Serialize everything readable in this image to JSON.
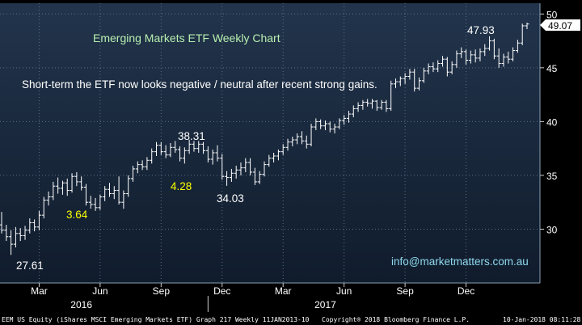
{
  "chart_data": {
    "type": "bar",
    "subtype": "ohlc",
    "title": "Emerging Markets ETF Weekly Chart",
    "subtitle": "Short-term the ETF now looks negative / neutral after recent strong gains.",
    "contact": "info@marketmatters.com.au",
    "last_price_label": "49.07",
    "ylim": [
      25,
      51
    ],
    "y_ticks": [
      "30",
      "35",
      "40",
      "45",
      "50"
    ],
    "x_month_ticks": [
      "Mar",
      "Jun",
      "Sep",
      "Dec",
      "Mar",
      "Jun",
      "Sep",
      "Dec"
    ],
    "x_year_ticks": [
      "2016",
      "2017"
    ],
    "grid": true,
    "annotations": [
      {
        "text": "27.61",
        "color": "#ffffff"
      },
      {
        "text": "3.64",
        "color": "#ffff00"
      },
      {
        "text": "38.31",
        "color": "#ffffff"
      },
      {
        "text": "4.28",
        "color": "#ffff00"
      },
      {
        "text": "34.03",
        "color": "#ffffff"
      },
      {
        "text": "47.93",
        "color": "#ffffff"
      }
    ],
    "series": [
      {
        "values": [
          {
            "o": 30.4,
            "h": 31.6,
            "l": 29.6,
            "c": 29.9
          },
          {
            "o": 29.9,
            "h": 30.4,
            "l": 28.9,
            "c": 29.3
          },
          {
            "o": 29.3,
            "h": 29.9,
            "l": 27.61,
            "c": 28.6
          },
          {
            "o": 28.6,
            "h": 30.2,
            "l": 28.3,
            "c": 29.6
          },
          {
            "o": 29.6,
            "h": 30.1,
            "l": 28.9,
            "c": 29.4
          },
          {
            "o": 29.4,
            "h": 30.3,
            "l": 29.0,
            "c": 29.9
          },
          {
            "o": 29.9,
            "h": 31.0,
            "l": 29.6,
            "c": 30.6
          },
          {
            "o": 30.6,
            "h": 30.9,
            "l": 29.8,
            "c": 30.2
          },
          {
            "o": 30.2,
            "h": 31.7,
            "l": 29.9,
            "c": 31.3
          },
          {
            "o": 31.3,
            "h": 33.0,
            "l": 31.0,
            "c": 32.7
          },
          {
            "o": 32.7,
            "h": 33.5,
            "l": 32.2,
            "c": 33.0
          },
          {
            "o": 33.0,
            "h": 34.4,
            "l": 32.7,
            "c": 34.0
          },
          {
            "o": 34.0,
            "h": 34.8,
            "l": 33.3,
            "c": 33.8
          },
          {
            "o": 33.8,
            "h": 34.5,
            "l": 33.2,
            "c": 34.3
          },
          {
            "o": 34.3,
            "h": 34.7,
            "l": 33.1,
            "c": 33.6
          },
          {
            "o": 33.6,
            "h": 35.2,
            "l": 33.4,
            "c": 34.9
          },
          {
            "o": 34.9,
            "h": 35.3,
            "l": 34.0,
            "c": 34.4
          },
          {
            "o": 34.4,
            "h": 34.9,
            "l": 33.6,
            "c": 33.9
          },
          {
            "o": 33.9,
            "h": 34.2,
            "l": 32.2,
            "c": 32.5
          },
          {
            "o": 32.5,
            "h": 33.1,
            "l": 31.9,
            "c": 32.3
          },
          {
            "o": 32.3,
            "h": 32.9,
            "l": 31.7,
            "c": 32.0
          },
          {
            "o": 32.0,
            "h": 33.2,
            "l": 31.8,
            "c": 33.0
          },
          {
            "o": 33.0,
            "h": 34.0,
            "l": 32.6,
            "c": 33.7
          },
          {
            "o": 33.7,
            "h": 34.3,
            "l": 33.0,
            "c": 33.3
          },
          {
            "o": 33.3,
            "h": 34.0,
            "l": 32.8,
            "c": 33.6
          },
          {
            "o": 33.6,
            "h": 34.9,
            "l": 32.3,
            "c": 32.5
          },
          {
            "o": 32.5,
            "h": 33.6,
            "l": 31.9,
            "c": 33.3
          },
          {
            "o": 33.3,
            "h": 35.0,
            "l": 33.0,
            "c": 34.7
          },
          {
            "o": 34.7,
            "h": 35.9,
            "l": 34.4,
            "c": 35.6
          },
          {
            "o": 35.6,
            "h": 36.3,
            "l": 35.2,
            "c": 36.0
          },
          {
            "o": 36.0,
            "h": 36.4,
            "l": 35.5,
            "c": 35.8
          },
          {
            "o": 35.8,
            "h": 36.7,
            "l": 35.5,
            "c": 36.4
          },
          {
            "o": 36.4,
            "h": 37.5,
            "l": 36.1,
            "c": 37.2
          },
          {
            "o": 37.2,
            "h": 38.1,
            "l": 36.8,
            "c": 37.8
          },
          {
            "o": 37.8,
            "h": 38.1,
            "l": 36.9,
            "c": 37.2
          },
          {
            "o": 37.2,
            "h": 37.8,
            "l": 36.6,
            "c": 36.9
          },
          {
            "o": 36.9,
            "h": 38.0,
            "l": 36.7,
            "c": 37.6
          },
          {
            "o": 37.6,
            "h": 38.2,
            "l": 37.1,
            "c": 37.4
          },
          {
            "o": 37.4,
            "h": 37.7,
            "l": 36.3,
            "c": 36.6
          },
          {
            "o": 36.6,
            "h": 37.6,
            "l": 36.1,
            "c": 37.3
          },
          {
            "o": 37.3,
            "h": 38.31,
            "l": 37.0,
            "c": 37.9
          },
          {
            "o": 37.9,
            "h": 38.2,
            "l": 37.2,
            "c": 37.5
          },
          {
            "o": 37.5,
            "h": 38.2,
            "l": 37.1,
            "c": 37.9
          },
          {
            "o": 37.9,
            "h": 38.1,
            "l": 37.0,
            "c": 37.3
          },
          {
            "o": 37.3,
            "h": 37.7,
            "l": 36.2,
            "c": 36.5
          },
          {
            "o": 36.5,
            "h": 37.4,
            "l": 36.0,
            "c": 37.1
          },
          {
            "o": 37.1,
            "h": 37.8,
            "l": 36.3,
            "c": 36.6
          },
          {
            "o": 36.6,
            "h": 37.0,
            "l": 34.6,
            "c": 34.9
          },
          {
            "o": 34.9,
            "h": 35.4,
            "l": 34.03,
            "c": 34.8
          },
          {
            "o": 34.8,
            "h": 35.6,
            "l": 34.4,
            "c": 35.2
          },
          {
            "o": 35.2,
            "h": 35.9,
            "l": 34.7,
            "c": 35.5
          },
          {
            "o": 35.5,
            "h": 36.2,
            "l": 35.0,
            "c": 35.7
          },
          {
            "o": 35.7,
            "h": 36.6,
            "l": 35.3,
            "c": 36.2
          },
          {
            "o": 36.2,
            "h": 36.6,
            "l": 35.0,
            "c": 35.3
          },
          {
            "o": 35.3,
            "h": 35.7,
            "l": 34.1,
            "c": 34.4
          },
          {
            "o": 34.4,
            "h": 35.4,
            "l": 34.2,
            "c": 35.1
          },
          {
            "o": 35.1,
            "h": 36.3,
            "l": 34.9,
            "c": 36.0
          },
          {
            "o": 36.0,
            "h": 36.9,
            "l": 35.8,
            "c": 36.6
          },
          {
            "o": 36.6,
            "h": 37.1,
            "l": 36.2,
            "c": 36.8
          },
          {
            "o": 36.8,
            "h": 37.4,
            "l": 36.4,
            "c": 37.2
          },
          {
            "o": 37.2,
            "h": 37.9,
            "l": 36.9,
            "c": 37.6
          },
          {
            "o": 37.6,
            "h": 38.4,
            "l": 37.3,
            "c": 38.1
          },
          {
            "o": 38.1,
            "h": 38.6,
            "l": 37.7,
            "c": 38.3
          },
          {
            "o": 38.3,
            "h": 38.9,
            "l": 37.9,
            "c": 38.6
          },
          {
            "o": 38.6,
            "h": 39.1,
            "l": 37.9,
            "c": 38.2
          },
          {
            "o": 38.2,
            "h": 38.7,
            "l": 37.5,
            "c": 37.9
          },
          {
            "o": 37.9,
            "h": 39.8,
            "l": 37.7,
            "c": 39.5
          },
          {
            "o": 39.5,
            "h": 40.3,
            "l": 39.2,
            "c": 40.0
          },
          {
            "o": 40.0,
            "h": 40.2,
            "l": 39.3,
            "c": 39.6
          },
          {
            "o": 39.6,
            "h": 40.1,
            "l": 39.2,
            "c": 39.8
          },
          {
            "o": 39.8,
            "h": 40.0,
            "l": 39.0,
            "c": 39.3
          },
          {
            "o": 39.3,
            "h": 39.8,
            "l": 38.9,
            "c": 39.5
          },
          {
            "o": 39.5,
            "h": 40.3,
            "l": 39.3,
            "c": 40.1
          },
          {
            "o": 40.1,
            "h": 40.6,
            "l": 39.7,
            "c": 40.3
          },
          {
            "o": 40.3,
            "h": 41.0,
            "l": 39.9,
            "c": 40.7
          },
          {
            "o": 40.7,
            "h": 41.5,
            "l": 40.4,
            "c": 41.2
          },
          {
            "o": 41.2,
            "h": 41.8,
            "l": 40.9,
            "c": 41.5
          },
          {
            "o": 41.5,
            "h": 42.0,
            "l": 41.1,
            "c": 41.8
          },
          {
            "o": 41.8,
            "h": 42.1,
            "l": 41.4,
            "c": 41.7
          },
          {
            "o": 41.7,
            "h": 42.1,
            "l": 41.2,
            "c": 41.9
          },
          {
            "o": 41.9,
            "h": 42.0,
            "l": 41.0,
            "c": 41.3
          },
          {
            "o": 41.3,
            "h": 42.0,
            "l": 41.1,
            "c": 41.8
          },
          {
            "o": 41.8,
            "h": 42.0,
            "l": 40.9,
            "c": 41.2
          },
          {
            "o": 41.2,
            "h": 43.8,
            "l": 41.0,
            "c": 43.5
          },
          {
            "o": 43.5,
            "h": 44.0,
            "l": 43.1,
            "c": 43.7
          },
          {
            "o": 43.7,
            "h": 44.2,
            "l": 43.3,
            "c": 44.0
          },
          {
            "o": 44.0,
            "h": 44.5,
            "l": 43.5,
            "c": 44.2
          },
          {
            "o": 44.2,
            "h": 44.9,
            "l": 43.9,
            "c": 44.6
          },
          {
            "o": 44.6,
            "h": 44.9,
            "l": 42.8,
            "c": 43.1
          },
          {
            "o": 43.1,
            "h": 44.1,
            "l": 42.9,
            "c": 43.8
          },
          {
            "o": 43.8,
            "h": 45.0,
            "l": 43.6,
            "c": 44.7
          },
          {
            "o": 44.7,
            "h": 45.4,
            "l": 44.4,
            "c": 45.1
          },
          {
            "o": 45.1,
            "h": 45.5,
            "l": 44.6,
            "c": 44.9
          },
          {
            "o": 44.9,
            "h": 45.7,
            "l": 44.6,
            "c": 45.4
          },
          {
            "o": 45.4,
            "h": 46.1,
            "l": 45.1,
            "c": 45.8
          },
          {
            "o": 45.8,
            "h": 46.0,
            "l": 44.2,
            "c": 44.6
          },
          {
            "o": 44.6,
            "h": 45.6,
            "l": 44.4,
            "c": 45.3
          },
          {
            "o": 45.3,
            "h": 46.6,
            "l": 45.0,
            "c": 46.3
          },
          {
            "o": 46.3,
            "h": 46.9,
            "l": 45.9,
            "c": 46.5
          },
          {
            "o": 46.5,
            "h": 46.7,
            "l": 45.3,
            "c": 45.7
          },
          {
            "o": 45.7,
            "h": 46.6,
            "l": 45.4,
            "c": 46.2
          },
          {
            "o": 46.2,
            "h": 46.7,
            "l": 45.5,
            "c": 45.9
          },
          {
            "o": 45.9,
            "h": 46.8,
            "l": 45.6,
            "c": 46.5
          },
          {
            "o": 46.5,
            "h": 47.2,
            "l": 46.1,
            "c": 46.8
          },
          {
            "o": 46.8,
            "h": 47.93,
            "l": 46.6,
            "c": 47.5
          },
          {
            "o": 47.5,
            "h": 47.7,
            "l": 45.8,
            "c": 46.1
          },
          {
            "o": 46.1,
            "h": 46.8,
            "l": 45.0,
            "c": 45.4
          },
          {
            "o": 45.4,
            "h": 46.3,
            "l": 45.1,
            "c": 46.0
          },
          {
            "o": 46.0,
            "h": 46.5,
            "l": 45.4,
            "c": 45.8
          },
          {
            "o": 45.8,
            "h": 46.9,
            "l": 45.6,
            "c": 46.6
          },
          {
            "o": 46.6,
            "h": 47.6,
            "l": 46.4,
            "c": 47.3
          },
          {
            "o": 47.3,
            "h": 49.1,
            "l": 47.1,
            "c": 48.9
          },
          {
            "o": 48.9,
            "h": 49.2,
            "l": 48.6,
            "c": 49.07
          }
        ]
      }
    ]
  },
  "footer": {
    "left": "EEM US Equity (iShares MSCI Emerging Markets ETF) Graph 217  Weekly 11JAN2013-10",
    "center": "Copyright® 2018 Bloomberg Finance L.P.",
    "right": "10-Jan-2018 08:11:28"
  },
  "colors": {
    "background": "#000000",
    "plot_background": "#1c2f46",
    "grid": "#5a7088",
    "bar": "#ffffff",
    "title": "#b8f0b0",
    "annotation_yellow": "#ffff00",
    "contact": "#8fd8ee",
    "last_price_box": "#ffffff"
  }
}
